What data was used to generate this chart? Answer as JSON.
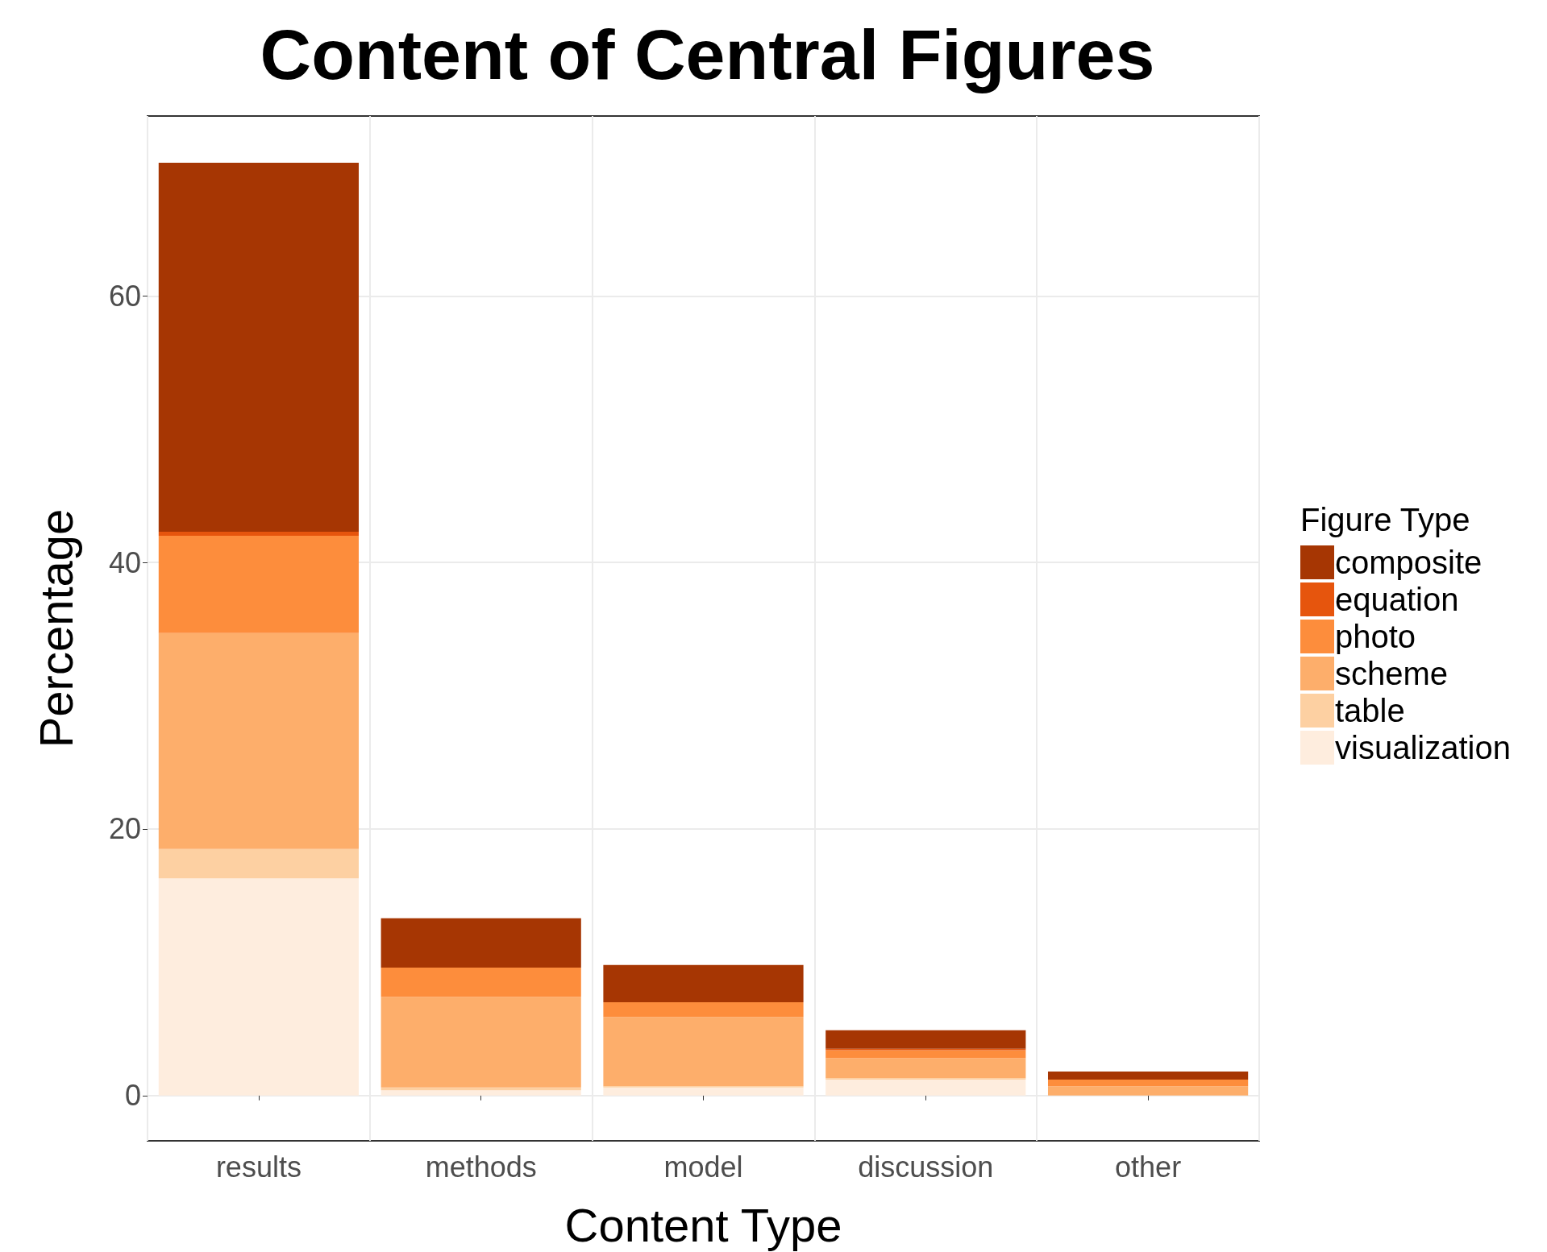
{
  "chart_data": {
    "type": "bar",
    "title": "Content of Central Figures",
    "xlabel": "Content Type",
    "ylabel": "Percentage",
    "legend_title": "Figure Type",
    "categories": [
      "results",
      "methods",
      "model",
      "discussion",
      "other"
    ],
    "stacked": true,
    "series": [
      {
        "name": "visualization",
        "color": "#feedde",
        "values": [
          16.3,
          0.4,
          0.6,
          1.2,
          null
        ]
      },
      {
        "name": "table",
        "color": "#fdd0a2",
        "values": [
          2.2,
          0.2,
          0.1,
          0.1,
          0
        ]
      },
      {
        "name": "scheme",
        "color": "#fdae6b",
        "values": [
          16.2,
          6.8,
          5.2,
          1.5,
          0.7
        ]
      },
      {
        "name": "photo",
        "color": "#fd8d3c",
        "values": [
          7.3,
          2.2,
          1.1,
          0.6,
          0.5
        ]
      },
      {
        "name": "equation",
        "color": "#e6550d",
        "values": [
          0.3,
          0,
          0,
          0.1,
          0
        ]
      },
      {
        "name": "composite",
        "color": "#a63603",
        "values": [
          27.7,
          3.7,
          2.8,
          1.4,
          0.6
        ]
      }
    ],
    "ylim": [
      -3.4,
      73.5
    ],
    "yticks": [
      0,
      20,
      40,
      60
    ],
    "grid": true,
    "legend": "right"
  }
}
